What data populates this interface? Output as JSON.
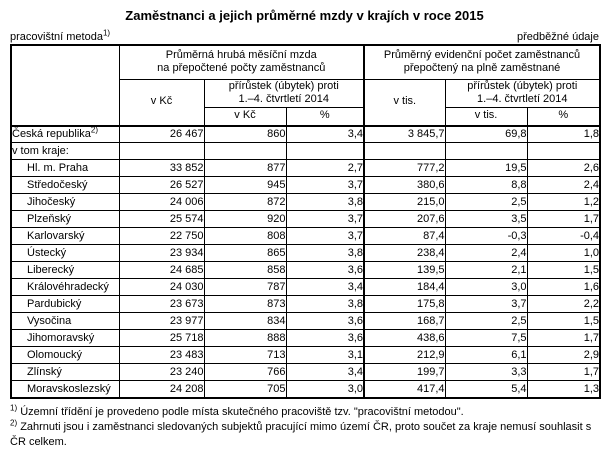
{
  "title": "Zaměstnanci a jejich průměrné mzdy v krajích v roce 2015",
  "meta": {
    "left_label": "pracovištní metoda",
    "left_sup": "1)",
    "right_label": "předběžné údaje"
  },
  "table": {
    "group1": {
      "line1": "Průměrná hrubá měsíční mzda",
      "line2": "na přepočtené počty zaměstnanců"
    },
    "group2": {
      "line1": "Průměrný evidenční počet zaměstnanců",
      "line2": "přepočtený na plně zaměstnané"
    },
    "cols": {
      "v_kc": "v Kč",
      "v_tis": "v tis.",
      "pct": "%",
      "increment_line1": "přírůstek (úbytek) proti",
      "increment_line2": "1.–4. čtvrtletí 2014"
    },
    "rows": [
      {
        "label": "Česká republika",
        "sup": "2)",
        "bold": true,
        "indent": false,
        "values": [
          "26 467",
          "860",
          "3,4",
          "3 845,7",
          "69,8",
          "1,8"
        ]
      },
      {
        "label": "v tom kraje:",
        "sup": "",
        "bold": false,
        "indent": false,
        "values": [
          "",
          "",
          "",
          "",
          "",
          ""
        ]
      },
      {
        "label": "Hl. m. Praha",
        "sup": "",
        "bold": false,
        "indent": true,
        "values": [
          "33 852",
          "877",
          "2,7",
          "777,2",
          "19,5",
          "2,6"
        ]
      },
      {
        "label": "Středočeský",
        "sup": "",
        "bold": false,
        "indent": true,
        "values": [
          "26 527",
          "945",
          "3,7",
          "380,6",
          "8,8",
          "2,4"
        ]
      },
      {
        "label": "Jihočeský",
        "sup": "",
        "bold": false,
        "indent": true,
        "values": [
          "24 006",
          "872",
          "3,8",
          "215,0",
          "2,5",
          "1,2"
        ]
      },
      {
        "label": "Plzeňský",
        "sup": "",
        "bold": false,
        "indent": true,
        "values": [
          "25 574",
          "920",
          "3,7",
          "207,6",
          "3,5",
          "1,7"
        ]
      },
      {
        "label": "Karlovarský",
        "sup": "",
        "bold": false,
        "indent": true,
        "values": [
          "22 750",
          "808",
          "3,7",
          "87,4",
          "-0,3",
          "-0,4"
        ]
      },
      {
        "label": "Ústecký",
        "sup": "",
        "bold": false,
        "indent": true,
        "values": [
          "23 934",
          "865",
          "3,8",
          "238,4",
          "2,4",
          "1,0"
        ]
      },
      {
        "label": "Liberecký",
        "sup": "",
        "bold": false,
        "indent": true,
        "values": [
          "24 685",
          "858",
          "3,6",
          "139,5",
          "2,1",
          "1,5"
        ]
      },
      {
        "label": "Královéhradecký",
        "sup": "",
        "bold": true,
        "indent": true,
        "values": [
          "24 030",
          "787",
          "3,4",
          "184,4",
          "3,0",
          "1,6"
        ]
      },
      {
        "label": "Pardubický",
        "sup": "",
        "bold": false,
        "indent": true,
        "values": [
          "23 673",
          "873",
          "3,8",
          "175,8",
          "3,7",
          "2,2"
        ]
      },
      {
        "label": "Vysočina",
        "sup": "",
        "bold": false,
        "indent": true,
        "values": [
          "23 977",
          "834",
          "3,6",
          "168,7",
          "2,5",
          "1,5"
        ]
      },
      {
        "label": "Jihomoravský",
        "sup": "",
        "bold": false,
        "indent": true,
        "values": [
          "25 718",
          "888",
          "3,6",
          "438,6",
          "7,5",
          "1,7"
        ]
      },
      {
        "label": "Olomoucký",
        "sup": "",
        "bold": false,
        "indent": true,
        "values": [
          "23 483",
          "713",
          "3,1",
          "212,9",
          "6,1",
          "2,9"
        ]
      },
      {
        "label": "Zlínský",
        "sup": "",
        "bold": false,
        "indent": true,
        "values": [
          "23 240",
          "766",
          "3,4",
          "199,7",
          "3,3",
          "1,7"
        ]
      },
      {
        "label": "Moravskoslezský",
        "sup": "",
        "bold": false,
        "indent": true,
        "values": [
          "24 208",
          "705",
          "3,0",
          "417,4",
          "5,4",
          "1,3"
        ]
      }
    ]
  },
  "footnotes": [
    {
      "sup": "1)",
      "text": "Územní třídění je provedeno podle místa skutečného pracoviště tzv. \"pracovištní metodou\"."
    },
    {
      "sup": "2)",
      "text": "Zahrnuti jsou i zaměstnanci sledovaných subjektů pracující mimo území ČR, proto součet za kraje nemusí souhlasit s ČR celkem."
    }
  ]
}
